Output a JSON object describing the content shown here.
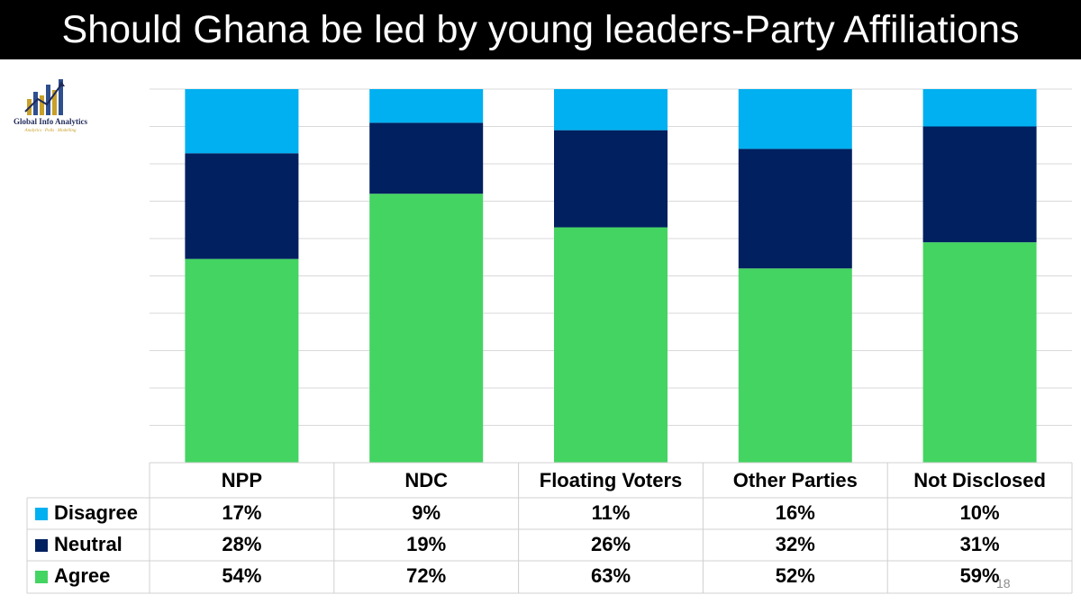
{
  "title": "Should Ghana be led by young leaders-Party Affiliations",
  "logo": {
    "name": "Global Info Analytics",
    "tagline": "Analytics · Polls · Modelling"
  },
  "page_number": "18",
  "colors": {
    "disagree": "#00b0f0",
    "neutral": "#002060",
    "agree": "#44d462"
  },
  "chart_data": {
    "type": "bar",
    "stacked": true,
    "categories": [
      "NPP",
      "NDC",
      "Floating Voters",
      "Other Parties",
      "Not Disclosed"
    ],
    "series": [
      {
        "name": "Disagree",
        "values": [
          17,
          9,
          11,
          16,
          10
        ],
        "labels": [
          "17%",
          "9%",
          "11%",
          "16%",
          "10%"
        ]
      },
      {
        "name": "Neutral",
        "values": [
          28,
          19,
          26,
          32,
          31
        ],
        "labels": [
          "28%",
          "19%",
          "26%",
          "32%",
          "31%"
        ]
      },
      {
        "name": "Agree",
        "values": [
          54,
          72,
          63,
          52,
          59
        ],
        "labels": [
          "54%",
          "72%",
          "63%",
          "52%",
          "59%"
        ]
      }
    ],
    "ylim": [
      0,
      100
    ],
    "grid": true,
    "legend": "data table"
  }
}
